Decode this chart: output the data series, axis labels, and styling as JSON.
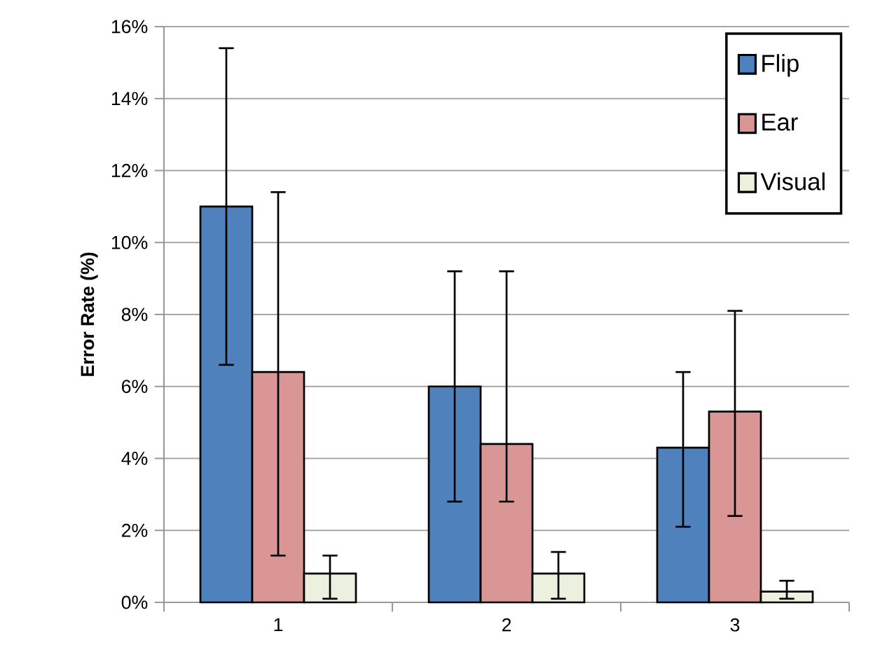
{
  "chart_data": {
    "type": "bar",
    "ylabel": "Error Rate (%)",
    "categories": [
      "1",
      "2",
      "3"
    ],
    "series": [
      {
        "name": "Flip",
        "color": "#4f81bd",
        "values": [
          11.0,
          6.0,
          4.3
        ],
        "errors": [
          [
            6.6,
            15.4
          ],
          [
            2.8,
            9.2
          ],
          [
            2.1,
            6.4
          ]
        ]
      },
      {
        "name": "Ear",
        "color": "#d99694",
        "values": [
          6.4,
          4.4,
          5.3
        ],
        "errors": [
          [
            1.3,
            11.4
          ],
          [
            2.8,
            9.2
          ],
          [
            2.4,
            8.1
          ]
        ]
      },
      {
        "name": "Visual",
        "color": "#ebf1de",
        "values": [
          0.8,
          0.8,
          0.3
        ],
        "errors": [
          [
            0.1,
            1.3
          ],
          [
            0.1,
            1.4
          ],
          [
            0.1,
            0.6
          ]
        ]
      }
    ],
    "ylim": [
      0,
      16
    ],
    "yticks": [
      {
        "value": 0,
        "label": "0%"
      },
      {
        "value": 2,
        "label": "2%"
      },
      {
        "value": 4,
        "label": "4%"
      },
      {
        "value": 6,
        "label": "6%"
      },
      {
        "value": 8,
        "label": "8%"
      },
      {
        "value": 10,
        "label": "10%"
      },
      {
        "value": 12,
        "label": "12%"
      },
      {
        "value": 14,
        "label": "14%"
      },
      {
        "value": 16,
        "label": "16%"
      }
    ],
    "grid": "y",
    "legend": "top right"
  }
}
